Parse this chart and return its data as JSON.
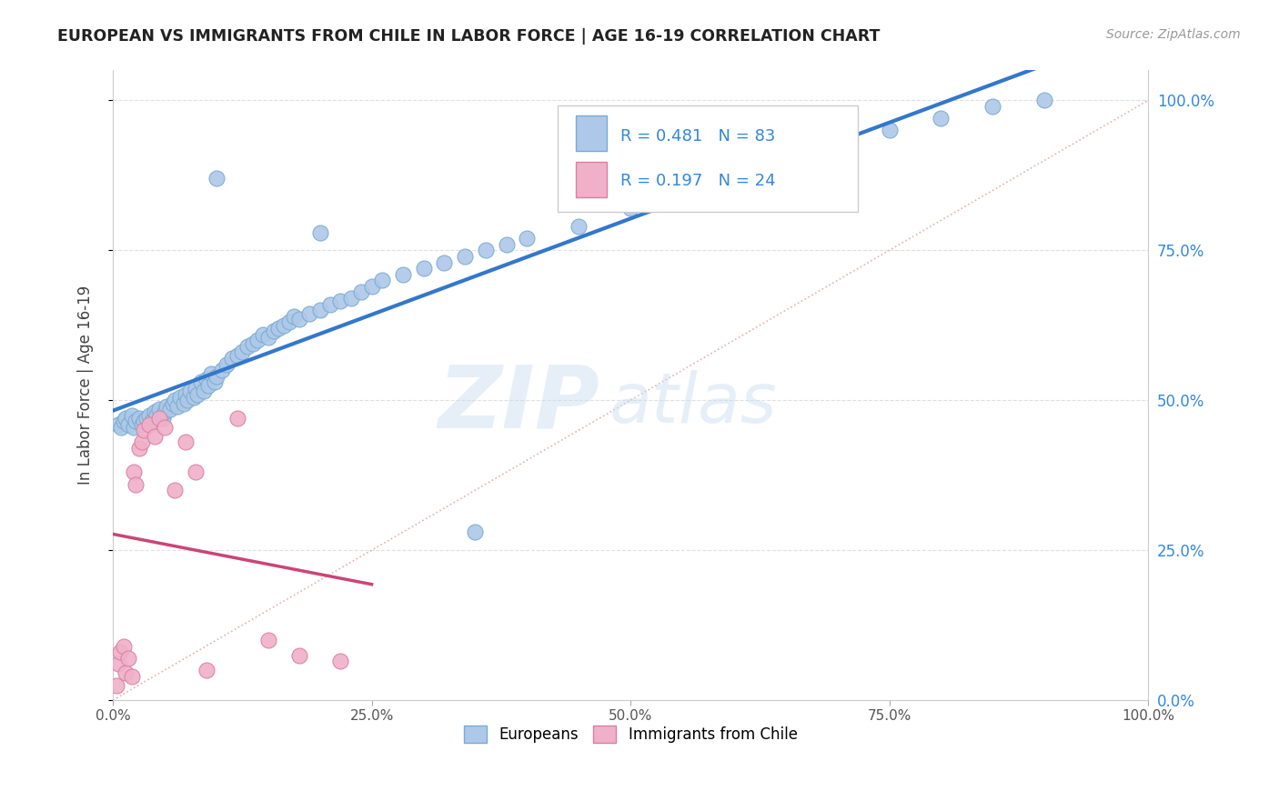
{
  "title": "EUROPEAN VS IMMIGRANTS FROM CHILE IN LABOR FORCE | AGE 16-19 CORRELATION CHART",
  "source_text": "Source: ZipAtlas.com",
  "ylabel": "In Labor Force | Age 16-19",
  "watermark": "ZIPatlas",
  "legend_european_label": "Europeans",
  "legend_chile_label": "Immigrants from Chile",
  "R_european": 0.481,
  "N_european": 83,
  "R_chile": 0.197,
  "N_chile": 24,
  "european_color": "#adc8e8",
  "european_edge_color": "#7aaad0",
  "european_line_color": "#3377cc",
  "chile_color": "#f0b0c8",
  "chile_edge_color": "#d880a0",
  "chile_line_color": "#cc4477",
  "ref_line_color": "#ddaaaa",
  "background_color": "#ffffff",
  "grid_color": "#dddddd",
  "title_color": "#222222",
  "right_axis_label_color": "#3388dd",
  "stat_text_color": "#3388dd",
  "xlim": [
    0.0,
    1.0
  ],
  "ylim": [
    0.0,
    1.05
  ],
  "yticks": [
    0.0,
    0.25,
    0.5,
    0.75,
    1.0
  ],
  "ytick_labels": [
    "0.0%",
    "25.0%",
    "50.0%",
    "75.0%",
    "100.0%"
  ],
  "xticks": [
    0.0,
    0.25,
    0.5,
    0.75,
    1.0
  ],
  "xtick_labels": [
    "0.0%",
    "25.0%",
    "50.0%",
    "75.0%",
    "100.0%"
  ],
  "eu_x": [
    0.005,
    0.008,
    0.01,
    0.012,
    0.015,
    0.018,
    0.02,
    0.022,
    0.025,
    0.028,
    0.03,
    0.032,
    0.035,
    0.038,
    0.04,
    0.042,
    0.045,
    0.048,
    0.05,
    0.052,
    0.055,
    0.058,
    0.06,
    0.062,
    0.065,
    0.068,
    0.07,
    0.072,
    0.075,
    0.078,
    0.08,
    0.082,
    0.085,
    0.088,
    0.09,
    0.092,
    0.095,
    0.098,
    0.1,
    0.105,
    0.11,
    0.115,
    0.12,
    0.125,
    0.13,
    0.135,
    0.14,
    0.145,
    0.15,
    0.155,
    0.16,
    0.165,
    0.17,
    0.175,
    0.18,
    0.19,
    0.2,
    0.21,
    0.22,
    0.23,
    0.24,
    0.25,
    0.26,
    0.28,
    0.3,
    0.32,
    0.34,
    0.36,
    0.38,
    0.4,
    0.45,
    0.5,
    0.55,
    0.6,
    0.65,
    0.7,
    0.75,
    0.8,
    0.85,
    0.9,
    0.1,
    0.2,
    0.35
  ],
  "eu_y": [
    0.46,
    0.455,
    0.465,
    0.47,
    0.46,
    0.475,
    0.455,
    0.465,
    0.47,
    0.46,
    0.465,
    0.47,
    0.475,
    0.465,
    0.48,
    0.475,
    0.485,
    0.47,
    0.48,
    0.49,
    0.485,
    0.495,
    0.5,
    0.49,
    0.505,
    0.495,
    0.51,
    0.5,
    0.515,
    0.505,
    0.52,
    0.51,
    0.53,
    0.515,
    0.535,
    0.525,
    0.545,
    0.53,
    0.54,
    0.55,
    0.56,
    0.57,
    0.575,
    0.58,
    0.59,
    0.595,
    0.6,
    0.61,
    0.605,
    0.615,
    0.62,
    0.625,
    0.63,
    0.64,
    0.635,
    0.645,
    0.65,
    0.66,
    0.665,
    0.67,
    0.68,
    0.69,
    0.7,
    0.71,
    0.72,
    0.73,
    0.74,
    0.75,
    0.76,
    0.77,
    0.79,
    0.82,
    0.84,
    0.87,
    0.89,
    0.92,
    0.95,
    0.97,
    0.99,
    1.0,
    0.87,
    0.78,
    0.28
  ],
  "ch_x": [
    0.003,
    0.005,
    0.007,
    0.01,
    0.012,
    0.015,
    0.018,
    0.02,
    0.022,
    0.025,
    0.028,
    0.03,
    0.035,
    0.04,
    0.045,
    0.05,
    0.06,
    0.07,
    0.08,
    0.09,
    0.12,
    0.15,
    0.18,
    0.22
  ],
  "ch_y": [
    0.025,
    0.06,
    0.08,
    0.09,
    0.045,
    0.07,
    0.04,
    0.38,
    0.36,
    0.42,
    0.43,
    0.45,
    0.46,
    0.44,
    0.47,
    0.455,
    0.35,
    0.43,
    0.38,
    0.05,
    0.47,
    0.1,
    0.075,
    0.065
  ]
}
